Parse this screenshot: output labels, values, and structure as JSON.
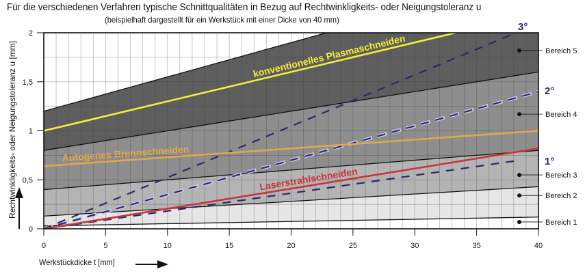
{
  "chart_data": {
    "type": "line",
    "title": "Für die verschiedenen Verfahren typische Schnittqualitäten in Bezug auf Rechtwinkligkeits- oder Neigungstoleranz u",
    "subtitle": "(beispielhaft dargestellt für ein Werkstück mit einer Dicke von 40 mm)",
    "xlabel": "Werkstückdicke t [mm]",
    "ylabel": "Rechtwinkligkeits- oder Neigungstoleranz u [mm]",
    "xlim": [
      0,
      40
    ],
    "ylim": [
      0,
      2
    ],
    "x_ticks": [
      "0",
      "5",
      "10",
      "15",
      "20",
      "25",
      "30",
      "35",
      "40"
    ],
    "y_ticks": [
      {
        "v": 0,
        "label": "0"
      },
      {
        "v": 0.5,
        "label": "0,5"
      },
      {
        "v": 1,
        "label": "1"
      },
      {
        "v": 1.5,
        "label": "1,5"
      },
      {
        "v": 2,
        "label": "2"
      }
    ],
    "grid": true,
    "ranges": [
      {
        "name": "Bereich 1",
        "u_at_0": 0.03,
        "u_at_40": 0.12,
        "fill": "#e6e6e6",
        "marker_u": 0.07
      },
      {
        "name": "Bereich 2",
        "u_at_0": 0.13,
        "u_at_40": 0.43,
        "fill": "#b4b4b4",
        "marker_u": 0.34
      },
      {
        "name": "Bereich 3",
        "u_at_0": 0.4,
        "u_at_40": 0.8,
        "fill": "#8e8e8e",
        "marker_u": 0.55
      },
      {
        "name": "Bereich 4",
        "u_at_0": 0.8,
        "u_at_40": 1.6,
        "fill": "#5e5e5e",
        "marker_u": 1.17
      },
      {
        "name": "Bereich 5",
        "u_at_0": 1.2,
        "u_at_40": 2.6,
        "fill": "#ffffff",
        "marker_u": 1.82
      }
    ],
    "series": [
      {
        "name": "konventionelles Plasmaschneiden",
        "x": [
          0,
          33.3
        ],
        "y": [
          1.0,
          2.0
        ],
        "color": "#f4ee3a",
        "label_at": 17
      },
      {
        "name": "Autogenes Brennschneiden",
        "x": [
          0,
          40
        ],
        "y": [
          0.64,
          1.0
        ],
        "color": "#e0a84a",
        "label_at": 1.5
      },
      {
        "name": "Laserstrahlschneiden",
        "x": [
          0,
          40
        ],
        "y": [
          0.0,
          0.82
        ],
        "color": "#c8343a",
        "label_at": 17.5
      }
    ],
    "angle_lines": [
      {
        "name": "1°",
        "x": [
          0,
          38.5
        ],
        "y": [
          0,
          0.7
        ],
        "color": "#2a2a66"
      },
      {
        "name": "2°",
        "x": [
          0,
          40
        ],
        "y": [
          0,
          1.4
        ],
        "color": "#2a2a66"
      },
      {
        "name": "3°",
        "x": [
          0,
          38.2
        ],
        "y": [
          0,
          2.0
        ],
        "color": "#2a2a66"
      }
    ]
  }
}
